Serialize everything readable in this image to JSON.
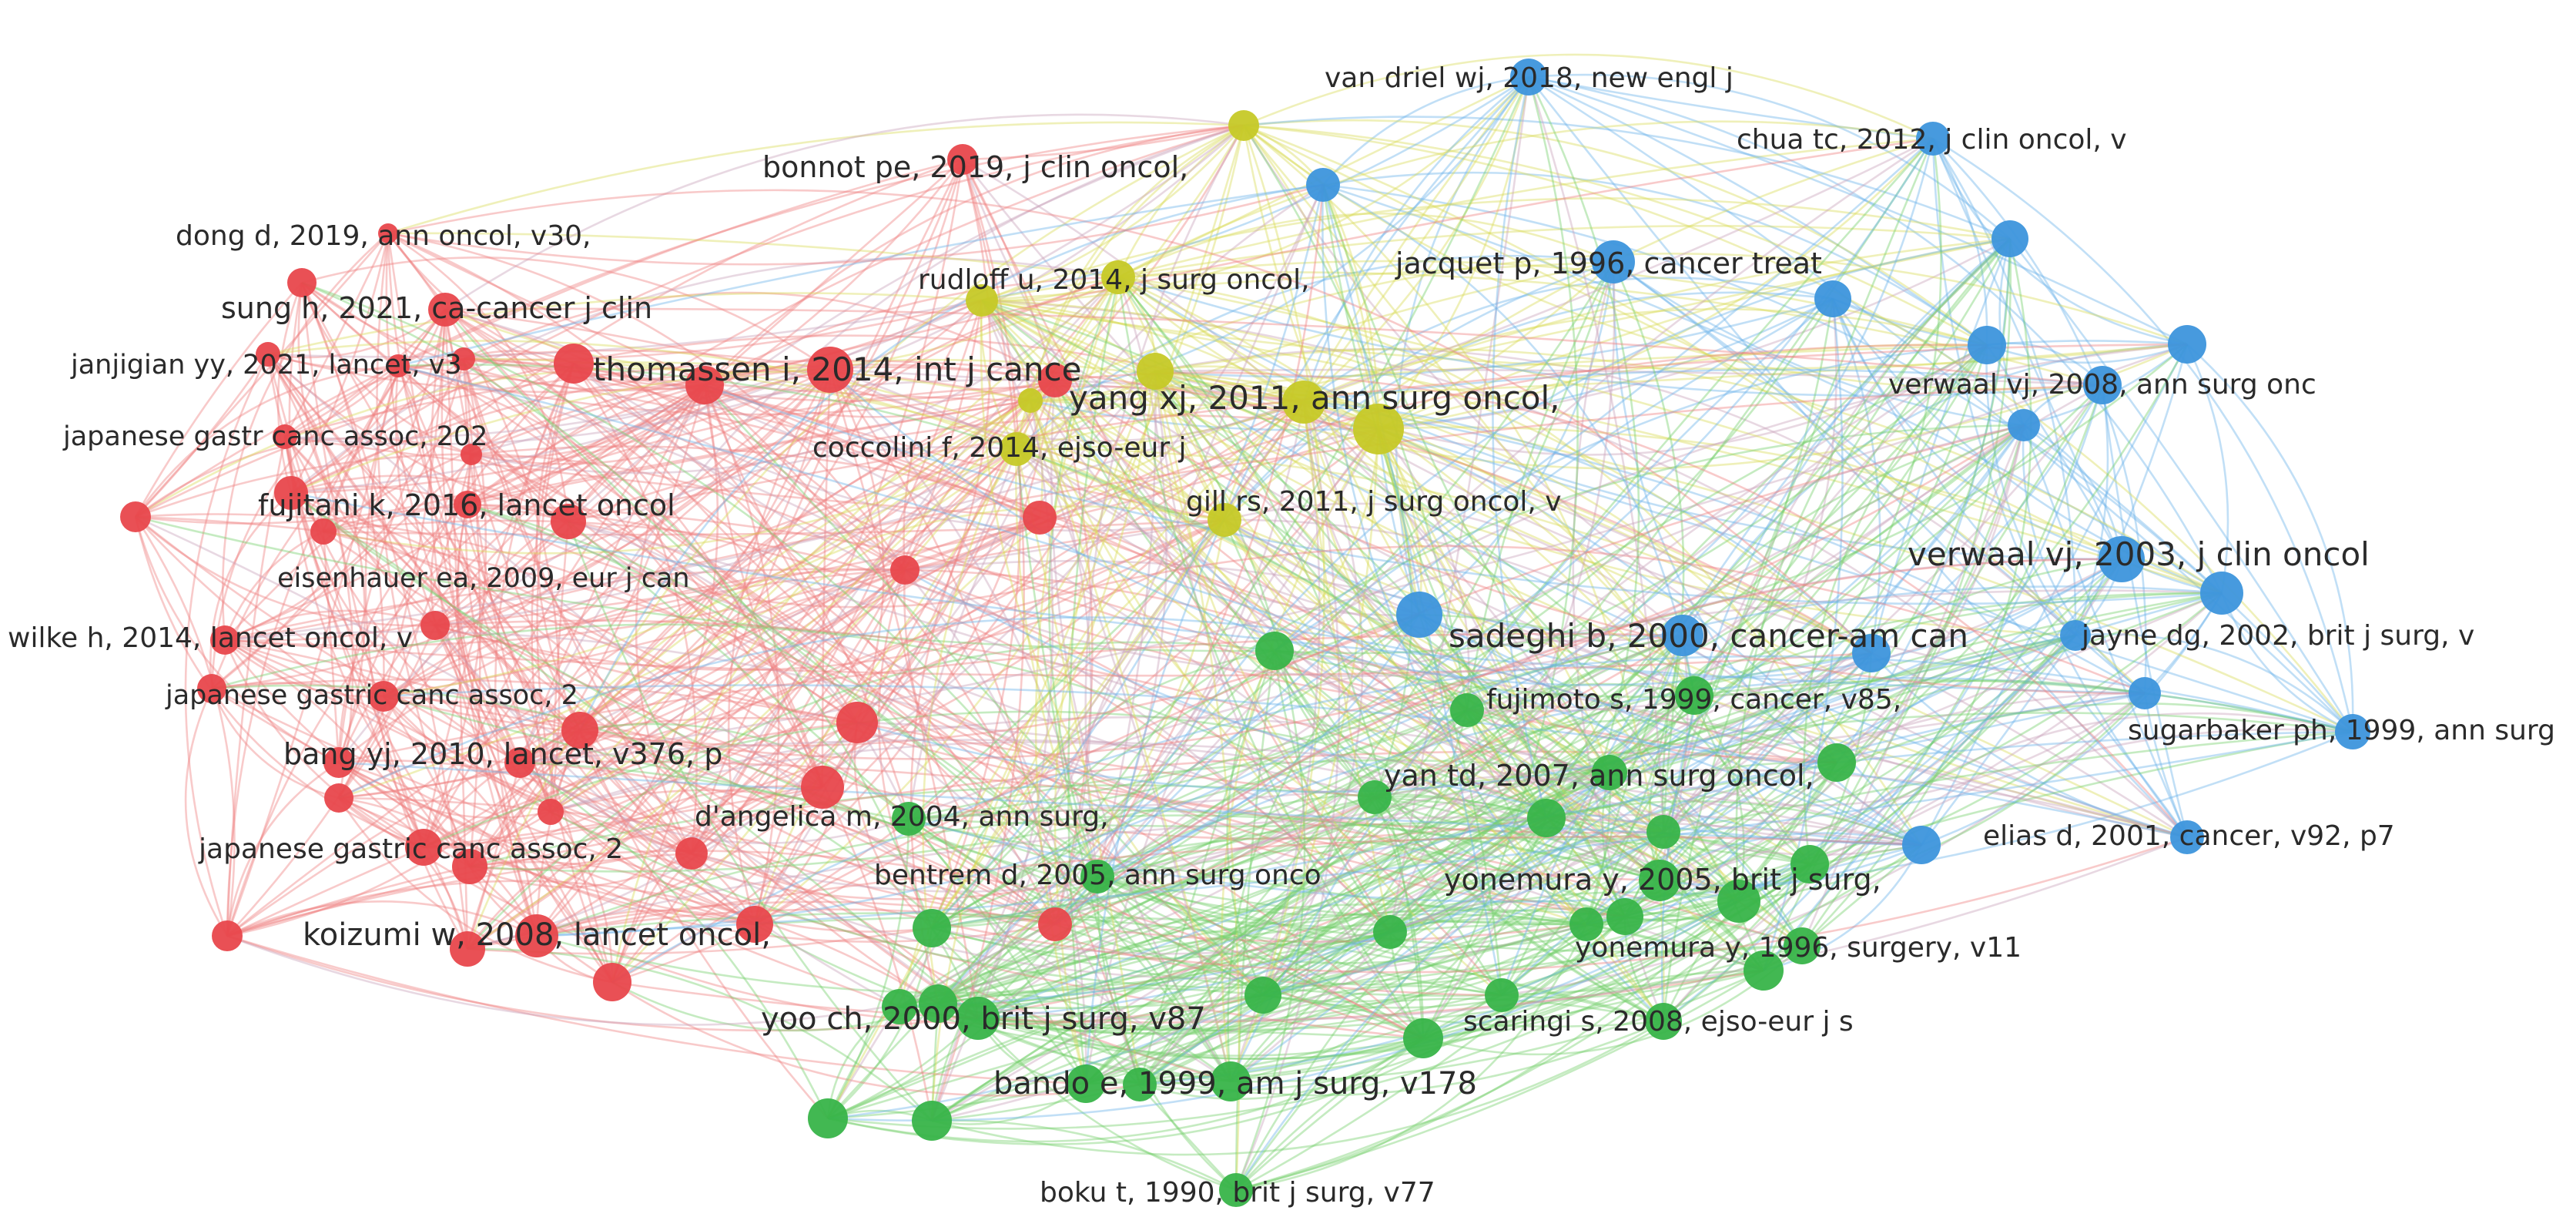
{
  "colors": {
    "red": "#e8474c",
    "yellow": "#c6c927",
    "blue": "#3d95dc",
    "green": "#38b449",
    "red_edge": "#ef8080",
    "yellow_edge": "#d8dc58",
    "blue_edge": "#6cb2ea",
    "green_edge": "#74cf6c",
    "mixed_edge": "#c7a3b9",
    "label_text": "#2a2a2a",
    "background": "#ffffff"
  },
  "clusters": [
    {
      "id": "cluster-1",
      "color": "red"
    },
    {
      "id": "cluster-2",
      "color": "green"
    },
    {
      "id": "cluster-3",
      "color": "blue"
    },
    {
      "id": "cluster-4",
      "color": "yellow"
    }
  ],
  "labels": [
    {
      "text": "van driel wj, 2018, new engl j",
      "cluster": "blue"
    },
    {
      "text": "chua tc, 2012, j clin oncol, v",
      "cluster": "blue"
    },
    {
      "text": "jacquet p, 1996, cancer treat",
      "cluster": "blue"
    },
    {
      "text": "verwaal vj, 2008, ann surg onc",
      "cluster": "blue"
    },
    {
      "text": "verwaal vj, 2003, j clin oncol",
      "cluster": "blue"
    },
    {
      "text": "jayne dg, 2002, brit j surg, v",
      "cluster": "blue"
    },
    {
      "text": "sadeghi b, 2000, cancer-am can",
      "cluster": "blue"
    },
    {
      "text": "sugarbaker ph, 1999, ann surg",
      "cluster": "blue"
    },
    {
      "text": "elias d, 2001, cancer, v92, p7",
      "cluster": "blue"
    },
    {
      "text": "bonnot pe, 2019, j clin oncol,",
      "cluster": "yellow"
    },
    {
      "text": "rudloff u, 2014, j surg oncol,",
      "cluster": "yellow"
    },
    {
      "text": "yang xj, 2011, ann surg oncol,",
      "cluster": "yellow"
    },
    {
      "text": "coccolini f, 2014, ejso-eur j",
      "cluster": "yellow"
    },
    {
      "text": "gill rs, 2011, j surg oncol, v",
      "cluster": "yellow"
    },
    {
      "text": "dong d, 2019, ann oncol, v30,",
      "cluster": "red"
    },
    {
      "text": "sung h, 2021, ca-cancer j clin",
      "cluster": "red"
    },
    {
      "text": "janjigian yy, 2021, lancet, v3",
      "cluster": "red"
    },
    {
      "text": "thomassen i, 2014, int j cance",
      "cluster": "red"
    },
    {
      "text": "japanese gastr canc assoc, 202",
      "cluster": "red"
    },
    {
      "text": "fujitani k, 2016, lancet oncol",
      "cluster": "red"
    },
    {
      "text": "eisenhauer ea, 2009, eur j can",
      "cluster": "red"
    },
    {
      "text": "wilke h, 2014, lancet oncol, v",
      "cluster": "red"
    },
    {
      "text": "japanese gastric canc assoc, 2",
      "cluster": "red"
    },
    {
      "text": "bang yj, 2010, lancet, v376, p",
      "cluster": "red"
    },
    {
      "text": "japanese gastric canc assoc, 2",
      "cluster": "red"
    },
    {
      "text": "koizumi w, 2008, lancet oncol,",
      "cluster": "red"
    },
    {
      "text": "d'angelica m, 2004, ann surg,",
      "cluster": "green"
    },
    {
      "text": "bentrem d, 2005, ann surg onco",
      "cluster": "green"
    },
    {
      "text": "fujimoto s, 1999, cancer, v85,",
      "cluster": "green"
    },
    {
      "text": "yan td, 2007, ann surg oncol,",
      "cluster": "green"
    },
    {
      "text": "yonemura y, 2005, brit j surg,",
      "cluster": "green"
    },
    {
      "text": "yonemura y, 1996, surgery, v11",
      "cluster": "green"
    },
    {
      "text": "yoo ch, 2000, brit j surg, v87",
      "cluster": "green"
    },
    {
      "text": "scaringi s, 2008, ejso-eur j s",
      "cluster": "green"
    },
    {
      "text": "bando e, 1999, am j surg, v178",
      "cluster": "green"
    },
    {
      "text": "boku t, 1990, brit j surg, v77",
      "cluster": "green"
    }
  ]
}
